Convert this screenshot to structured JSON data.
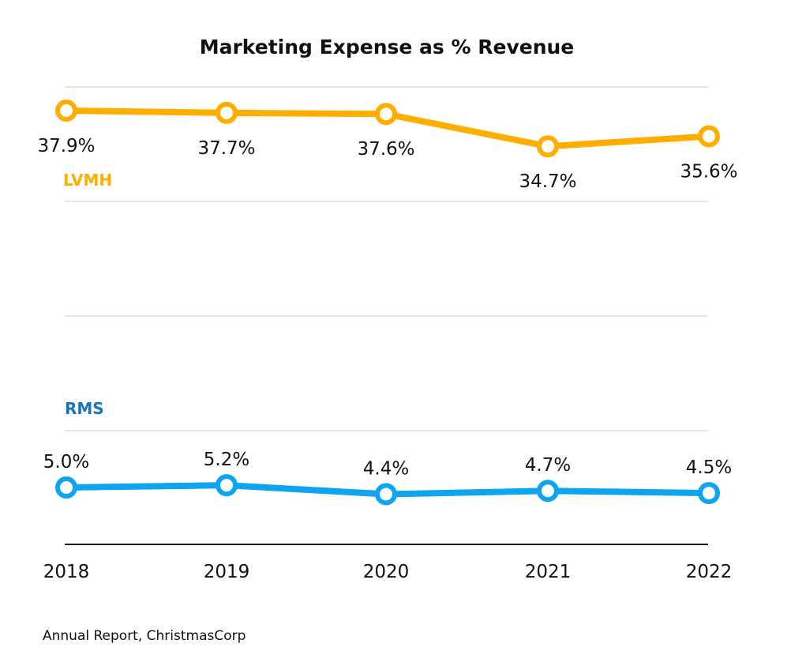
{
  "chart_data": {
    "type": "line",
    "title": "Marketing Expense as % Revenue",
    "categories": [
      "2018",
      "2019",
      "2020",
      "2021",
      "2022"
    ],
    "series": [
      {
        "name": "LVMH",
        "color": "#FFAE00",
        "values": [
          37.9,
          37.7,
          37.6,
          34.7,
          35.6
        ],
        "labels": [
          "37.9%",
          "37.7%",
          "37.6%",
          "34.7%",
          "35.6%"
        ]
      },
      {
        "name": "RMS",
        "color": "#0EA5F0",
        "label_color": "#1576BC",
        "values": [
          5.0,
          5.2,
          4.4,
          4.7,
          4.5
        ],
        "labels": [
          "5.0%",
          "5.2%",
          "4.4%",
          "4.7%",
          "4.5%"
        ]
      }
    ],
    "grid": true,
    "legend": "inline-labels",
    "source": "Annual Report, ChristmasCorp"
  }
}
